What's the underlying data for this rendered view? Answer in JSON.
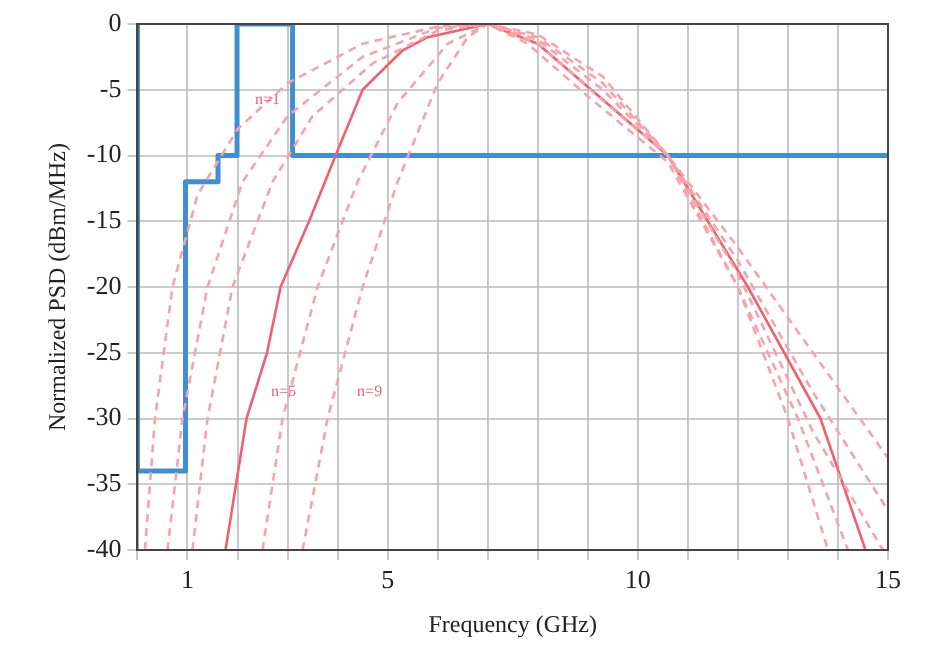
{
  "chart_data": {
    "type": "line",
    "xlabel": "Frequency (GHz)",
    "ylabel": "Normalized PSD (dBm/MHz)",
    "xlim": [
      0,
      15
    ],
    "xticks": [
      {
        "value": 0,
        "label": null
      },
      1,
      {
        "value": 2,
        "label": null
      },
      {
        "value": 3,
        "label": null
      },
      {
        "value": 4,
        "label": null
      },
      5,
      {
        "value": 6,
        "label": null
      },
      {
        "value": 7,
        "label": null
      },
      {
        "value": 8,
        "label": null
      },
      {
        "value": 9,
        "label": null
      },
      10,
      {
        "value": 11,
        "label": null
      },
      {
        "value": 12,
        "label": null
      },
      {
        "value": 13,
        "label": null
      },
      {
        "value": 14,
        "label": null
      },
      15
    ],
    "ylim": [
      -40,
      0
    ],
    "yticks": [
      -40,
      -35,
      -30,
      -25,
      -20,
      -15,
      -10,
      -5,
      0
    ],
    "grid": true,
    "legend": false,
    "marker": "none",
    "annotations": [
      {
        "text": "n=1",
        "x": 2.03,
        "y": -5.8
      },
      {
        "text": "n=5",
        "x": 2.35,
        "y": -28
      },
      {
        "text": "n=9",
        "x": 4.07,
        "y": -28
      }
    ],
    "series": [
      {
        "type": "line",
        "color": "#f7a3ab",
        "line_style": "dashed",
        "x": [
          0.15,
          0.35,
          0.7,
          1.2,
          2,
          3,
          4.5,
          6,
          7,
          8,
          9.3,
          10.6,
          12,
          13.5,
          15
        ],
        "values": [
          -40,
          -30,
          -20,
          -13,
          -8,
          -4.5,
          -1.5,
          -0.2,
          0,
          -0.8,
          -4,
          -10,
          -17,
          -25,
          -33
        ]
      },
      {
        "type": "line",
        "color": "#f7a3ab",
        "line_style": "dashed",
        "x": [
          0.6,
          0.9,
          1.4,
          2.1,
          3,
          4.5,
          6,
          7,
          8,
          9.3,
          10.6,
          12,
          13.5,
          15
        ],
        "values": [
          -40,
          -30,
          -20,
          -12,
          -7,
          -2.5,
          -0.3,
          0,
          -1,
          -4.5,
          -10,
          -18,
          -28,
          -37
        ]
      },
      {
        "type": "line",
        "color": "#f7a3ab",
        "line_style": "dashed",
        "x": [
          1.1,
          1.4,
          1.9,
          2.7,
          3.5,
          4.7,
          6,
          7,
          8,
          9.3,
          10.6,
          12,
          13.5,
          14.9
        ],
        "values": [
          -40,
          -30,
          -20,
          -12,
          -7,
          -3,
          -0.5,
          0,
          -1.2,
          -5,
          -10,
          -19,
          -31,
          -40
        ]
      },
      {
        "type": "line",
        "color": "#f7a3ab",
        "line_style": "dashed",
        "x": [
          2.5,
          2.9,
          3.6,
          4.4,
          5.2,
          6.2,
          7,
          8,
          9.2,
          10.6,
          12,
          13.2,
          14.2
        ],
        "values": [
          -40,
          -30,
          -20,
          -12,
          -6,
          -1.5,
          0,
          -1.5,
          -5.5,
          -10,
          -20,
          -30,
          -40
        ]
      },
      {
        "type": "line",
        "color": "#f7a3ab",
        "line_style": "dashed",
        "x": [
          3.3,
          3.8,
          4.5,
          5.2,
          6,
          6.6,
          7,
          7.8,
          9,
          10.6,
          12,
          13,
          13.8
        ],
        "values": [
          -40,
          -30,
          -20,
          -12,
          -4.5,
          -1,
          0,
          -1.5,
          -5.5,
          -10.5,
          -20,
          -30,
          -40
        ]
      },
      {
        "type": "line",
        "color": "#f0606e",
        "line_style": "solid",
        "x": [
          1.76,
          1.97,
          2.18,
          2.59,
          2.86,
          3.43,
          3.96,
          4.5,
          5.3,
          5.8,
          7,
          8,
          9.07,
          10.6,
          12.2,
          13.65,
          14.55
        ],
        "values": [
          -40,
          -35,
          -30,
          -25,
          -20,
          -15,
          -10,
          -5,
          -2,
          -1,
          0,
          -1.5,
          -5,
          -10,
          -20,
          -30,
          -40
        ]
      },
      {
        "type": "step",
        "color": "#3f8fd2",
        "line_style": "solid",
        "x": [
          0,
          0.96,
          1.61,
          1.99,
          3.1,
          10.6,
          15
        ],
        "values": [
          0,
          -34,
          -12,
          -10,
          0,
          -10,
          -10
        ]
      }
    ]
  }
}
